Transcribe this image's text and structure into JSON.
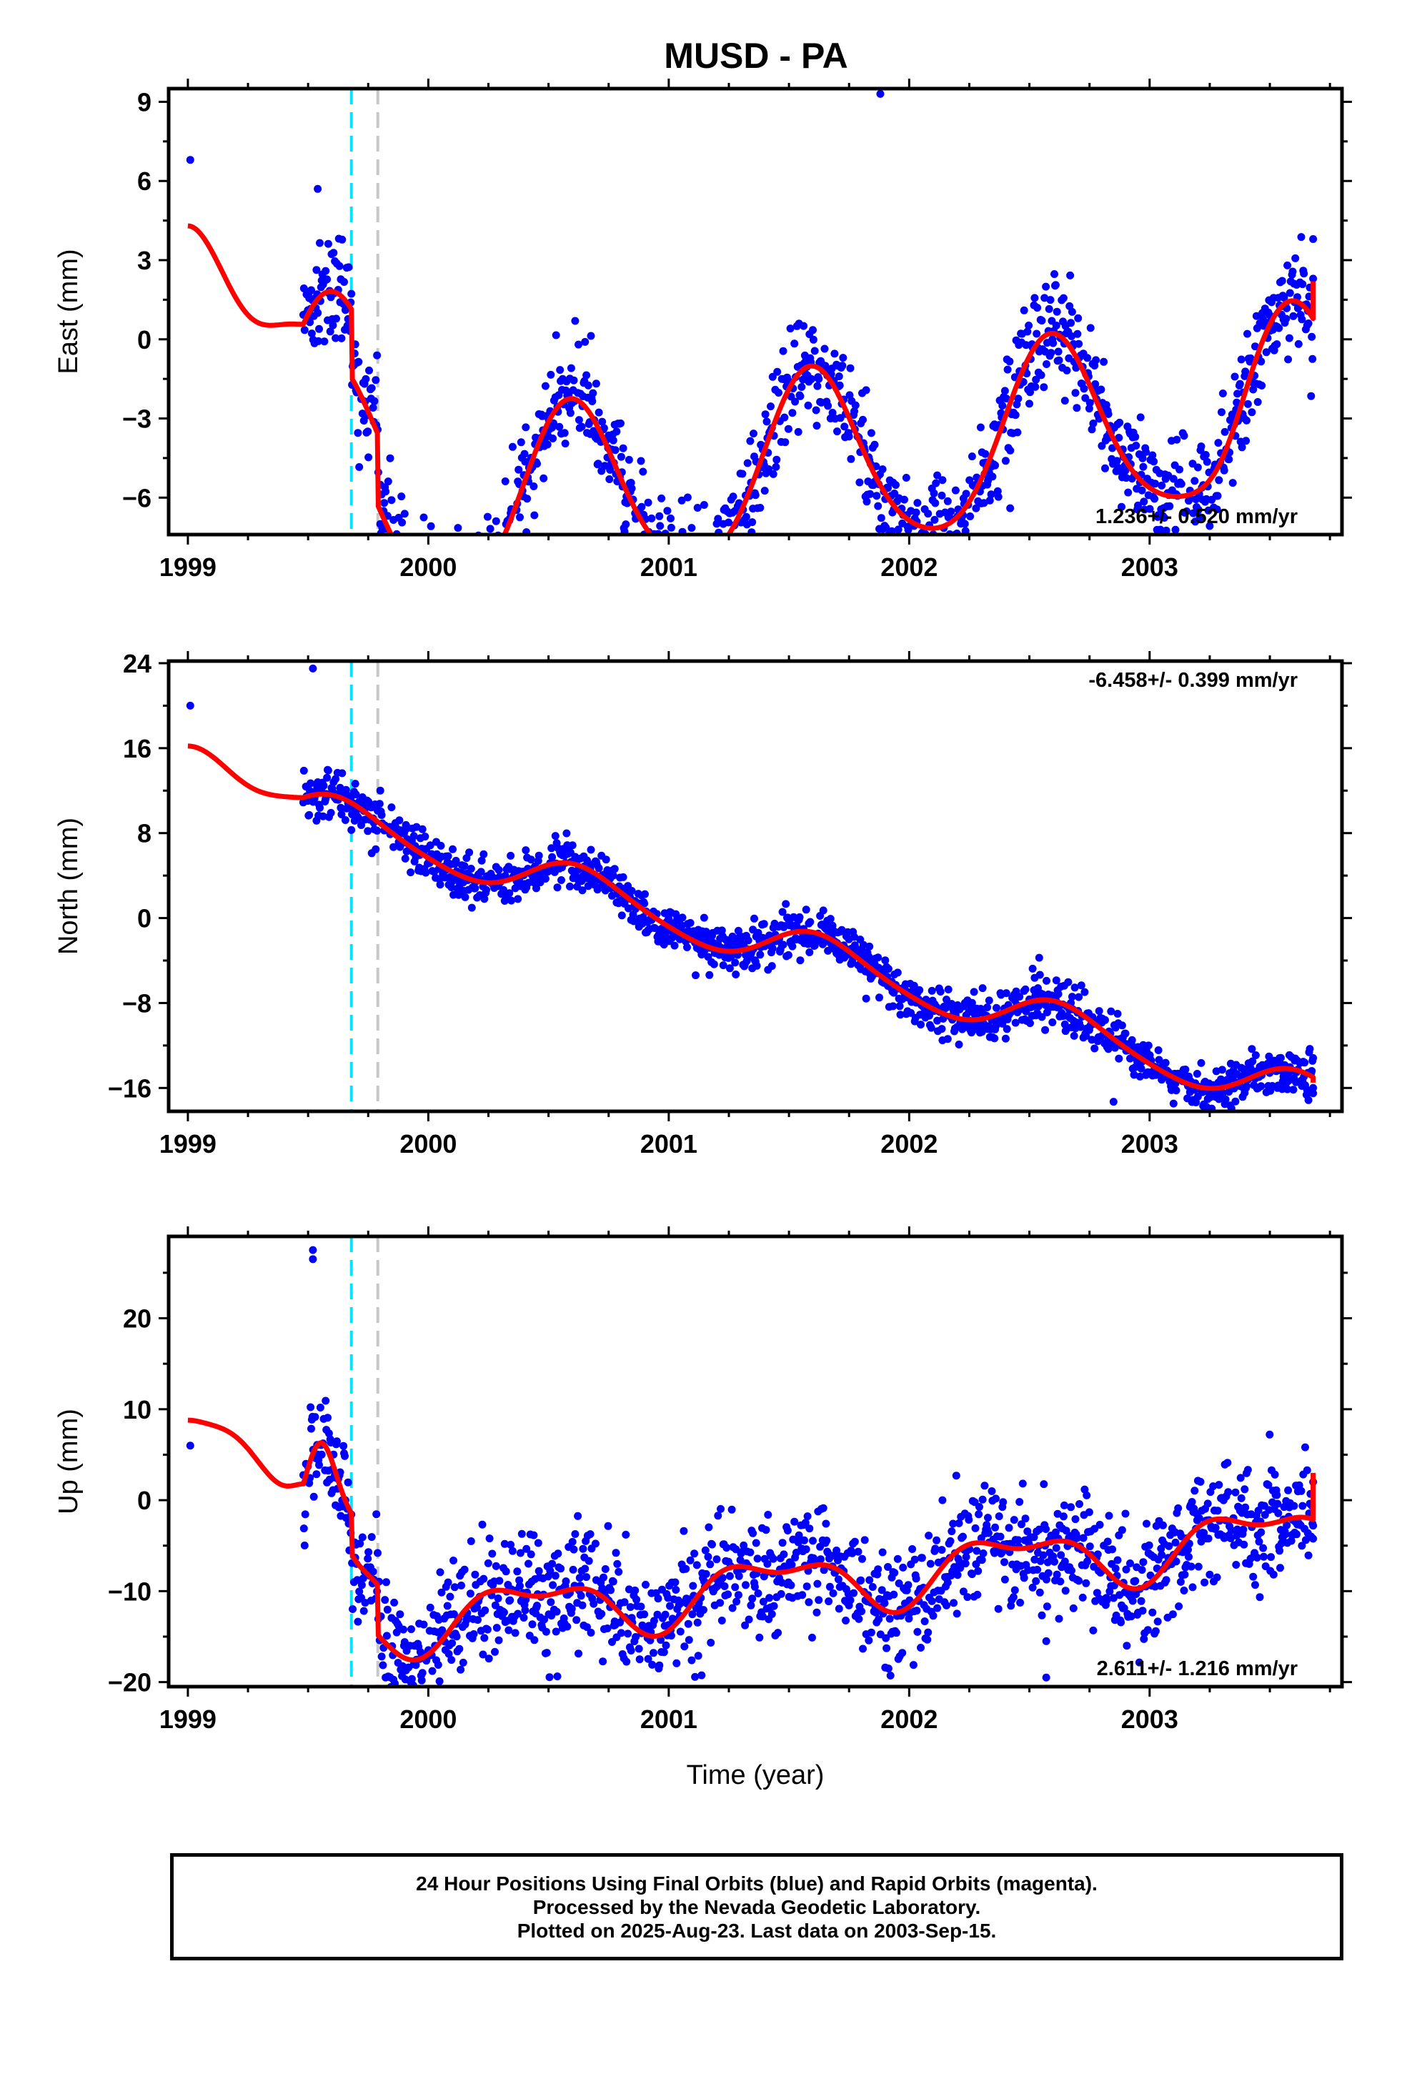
{
  "title": "MUSD - PA",
  "colors": {
    "final_points": "#0000ff",
    "model_curve": "#ff0000",
    "equipment_change": "#00e5ff",
    "other_offset": "#c8c8c8",
    "frame": "#000000"
  },
  "caption": {
    "line1": "24 Hour Positions Using Final Orbits (blue) and Rapid Orbits (magenta).",
    "line2": "Processed by the Nevada Geodetic Laboratory.",
    "line3": "Plotted on 2025-Aug-23. Last data on 2003-Sep-15."
  },
  "chart_data": [
    {
      "type": "scatter",
      "component": "east",
      "ylabel": "East (mm)",
      "xlabel": "",
      "xlim": [
        1998.92,
        2003.8
      ],
      "ylim": [
        -7.4,
        9.5
      ],
      "xticks": [
        1999,
        2000,
        2001,
        2002,
        2003
      ],
      "yticks": [
        -6,
        -3,
        0,
        3,
        6,
        9
      ],
      "yticklabels": [
        "−6",
        "−3",
        "0",
        "3",
        "6",
        "9"
      ],
      "rate_text": "1.236+/- 0.520 mm/yr",
      "rate_position": "bottom-right",
      "offsets": [
        1999.68,
        1999.79
      ],
      "data_span": [
        1999.48,
        2003.68
      ],
      "model": {
        "mean": 0.0,
        "trend": 1.236,
        "t0": 2001.2,
        "annual": [
          -1.9,
          -2.8
        ],
        "semiannual": [
          0.35,
          0.25
        ],
        "extra": [
          [
            2003.3,
            -0.5,
            0.12
          ]
        ],
        "steps": [
          [
            1999.68,
            -2.6,
            0.0
          ],
          [
            1999.79,
            -2.7,
            0.0
          ]
        ]
      },
      "noise": 1.0,
      "outliers": [
        [
          1999.01,
          6.8
        ],
        [
          1999.54,
          5.7
        ],
        [
          1999.8,
          -7.0
        ],
        [
          2001.88,
          9.3
        ],
        [
          2002.42,
          -6.4
        ],
        [
          2003.68,
          3.8
        ],
        [
          2003.68,
          2.3
        ]
      ],
      "curve_start": [
        1999.0,
        4.3
      ],
      "curve_end": [
        2003.68,
        2.2
      ]
    },
    {
      "type": "scatter",
      "component": "north",
      "ylabel": "North (mm)",
      "xlabel": "",
      "xlim": [
        1998.92,
        2003.8
      ],
      "ylim": [
        -18.2,
        24.2
      ],
      "xticks": [
        1999,
        2000,
        2001,
        2002,
        2003
      ],
      "yticks": [
        -16,
        -8,
        0,
        8,
        16,
        24
      ],
      "yticklabels": [
        "−16",
        "−8",
        "0",
        "8",
        "16",
        "24"
      ],
      "rate_text": "-6.458+/- 0.399 mm/yr",
      "rate_position": "top-right",
      "offsets": [
        1999.68,
        1999.79
      ],
      "data_span": [
        1999.48,
        2003.68
      ],
      "model": {
        "mean": -1.0,
        "trend": -6.458,
        "t0": 2001.2,
        "annual": [
          -1.6,
          -1.3
        ],
        "semiannual": [
          0.2,
          0.2
        ],
        "extra": [],
        "steps": []
      },
      "noise": 1.1,
      "outliers": [
        [
          1999.01,
          20.0
        ],
        [
          1999.52,
          23.5
        ],
        [
          2002.85,
          -17.3
        ],
        [
          2003.68,
          -16.0
        ],
        [
          2003.68,
          -16.5
        ]
      ],
      "curve_start": [
        1999.0,
        16.2
      ],
      "curve_end": [
        2003.68,
        -15.5
      ]
    },
    {
      "type": "scatter",
      "component": "up",
      "ylabel": "Up (mm)",
      "xlabel": "Time (year)",
      "xlim": [
        1998.92,
        2003.8
      ],
      "ylim": [
        -20.5,
        29.0
      ],
      "xticks": [
        1999,
        2000,
        2001,
        2002,
        2003
      ],
      "yticks": [
        -20,
        -10,
        0,
        10,
        20
      ],
      "yticklabels": [
        "−20",
        "−10",
        "0",
        "10",
        "20"
      ],
      "rate_text": "2.611+/- 1.216 mm/yr",
      "rate_position": "bottom-right",
      "offsets": [
        1999.68,
        1999.79
      ],
      "data_span": [
        1999.48,
        2003.68
      ],
      "model": {
        "mean": 0.0,
        "trend": 2.611,
        "t0": 2001.2,
        "annual": [
          1.2,
          -2.6
        ],
        "semiannual": [
          0.8,
          -1.2
        ],
        "extra": [
          [
            1999.55,
            9.0,
            0.09
          ]
        ],
        "steps": [
          [
            1999.68,
            -4.5,
            0.0
          ],
          [
            1999.79,
            -5.5,
            0.0
          ]
        ]
      },
      "noise": 3.3,
      "outliers": [
        [
          1999.01,
          6.0
        ],
        [
          1999.52,
          27.5
        ],
        [
          1999.52,
          26.5
        ],
        [
          2002.57,
          -19.5
        ],
        [
          2002.57,
          -15.5
        ],
        [
          2003.68,
          2.0
        ],
        [
          2003.68,
          -2.8
        ]
      ],
      "curve_start": [
        1999.0,
        8.8
      ],
      "curve_end": [
        2003.68,
        3.0
      ]
    }
  ]
}
